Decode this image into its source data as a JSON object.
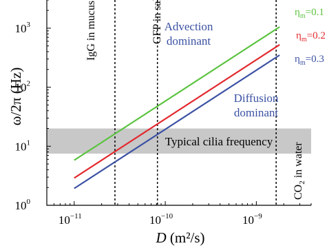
{
  "chart_data": {
    "type": "line",
    "title": "",
    "xlabel": {
      "main": "D",
      "unit": "(m²/s)"
    },
    "ylabel": "ω/2π  (Hz)",
    "xscale": "log",
    "yscale": "log",
    "xlim": [
      5e-12,
      4e-09
    ],
    "ylim": [
      1,
      3000
    ],
    "xticks": [
      {
        "value": 1e-11,
        "base": "10",
        "exp": "−11"
      },
      {
        "value": 1e-10,
        "base": "10",
        "exp": "−10"
      },
      {
        "value": 1e-09,
        "base": "10",
        "exp": "−9"
      }
    ],
    "yticks": [
      {
        "value": 1,
        "base": "10",
        "exp": "0"
      },
      {
        "value": 10,
        "base": "10",
        "exp": "1"
      },
      {
        "value": 100,
        "base": "10",
        "exp": "2"
      },
      {
        "value": 1000,
        "base": "10",
        "exp": "3"
      }
    ],
    "series": [
      {
        "name": "η_m=0.1",
        "label_main": "η",
        "label_sub": "m",
        "label_rest": "=0.1",
        "color": "#5cc341",
        "points": [
          [
            1e-11,
            5.8
          ],
          [
            1.8e-09,
            1050
          ]
        ]
      },
      {
        "name": "η_m=0.2",
        "label_main": "η",
        "label_sub": "m",
        "label_rest": "=0.2",
        "color": "#e2292e",
        "points": [
          [
            1e-11,
            2.9
          ],
          [
            1.8e-09,
            525
          ]
        ]
      },
      {
        "name": "η_m=0.3",
        "label_main": "η",
        "label_sub": "m",
        "label_rest": "=0.3",
        "color": "#3b51a3",
        "points": [
          [
            1e-11,
            1.93
          ],
          [
            1.8e-09,
            350
          ]
        ]
      }
    ],
    "band": {
      "label": "Typical cilia frequency",
      "y_range": [
        7.5,
        20
      ],
      "color": "#c8c8c8"
    },
    "vertical_markers": [
      {
        "x": 2.8e-11,
        "label": "IgG in mucus"
      },
      {
        "x": 8.2e-11,
        "label": "GFP in saline"
      },
      {
        "x": 1.65e-09,
        "label": "CO2 in water",
        "label_main": "CO",
        "label_sub": "2",
        "label_rest": " in water"
      }
    ],
    "region_labels": [
      {
        "lines": [
          "Advection",
          "dominant"
        ],
        "color": "#3b51a3"
      },
      {
        "lines": [
          "Diffusion",
          "dominant"
        ],
        "color": "#3b51a3"
      }
    ]
  }
}
